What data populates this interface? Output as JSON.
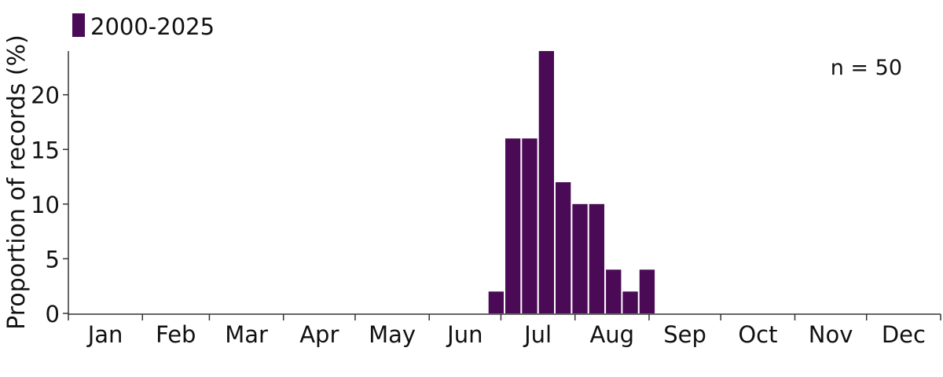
{
  "chart_data": {
    "type": "bar",
    "title": "",
    "xlabel": "",
    "ylabel": "Proportion of records (%)",
    "ylim": [
      0,
      24
    ],
    "yticks": [
      0,
      5,
      10,
      15,
      20
    ],
    "months": [
      "Jan",
      "Feb",
      "Mar",
      "Apr",
      "May",
      "Jun",
      "Jul",
      "Aug",
      "Sep",
      "Oct",
      "Nov",
      "Dec"
    ],
    "bin_unit": "week",
    "bins": [
      {
        "week": 26,
        "value": 2
      },
      {
        "week": 27,
        "value": 16
      },
      {
        "week": 28,
        "value": 16
      },
      {
        "week": 29,
        "value": 24
      },
      {
        "week": 30,
        "value": 12
      },
      {
        "week": 31,
        "value": 10
      },
      {
        "week": 32,
        "value": 10
      },
      {
        "week": 33,
        "value": 4
      },
      {
        "week": 34,
        "value": 2
      },
      {
        "week": 35,
        "value": 4
      }
    ],
    "series": [
      {
        "name": "2000-2025",
        "color": "#4a0a55"
      }
    ],
    "legend": {
      "label": "2000-2025",
      "position": "top-left"
    },
    "annotation": "n = 50",
    "grid": false
  }
}
